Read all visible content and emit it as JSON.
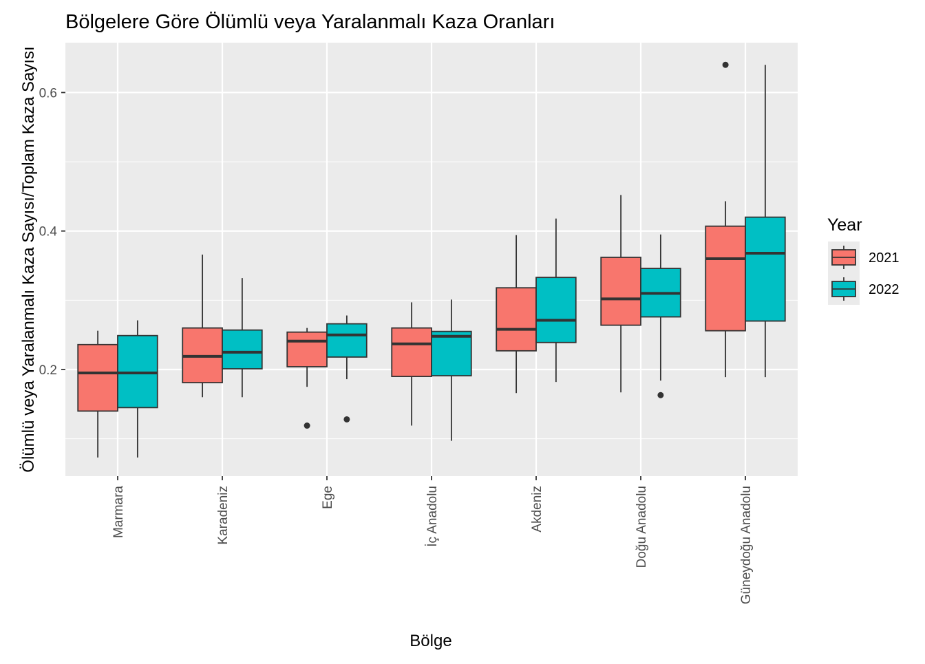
{
  "chart_data": {
    "type": "boxplot",
    "title": "Bölgelere Göre Ölümlü veya Yaralanmalı Kaza Oranları",
    "xlabel": "Bölge",
    "ylabel": "Ölümlü veya Yaralanmalı Kaza Sayısı/Toplam Kaza Sayısı",
    "categories": [
      "Marmara",
      "Karadeniz",
      "Ege",
      "İç Anadolu",
      "Akdeniz",
      "Doğu Anadolu",
      "Güneydoğu Anadolu"
    ],
    "y_ticks": [
      0.2,
      0.4,
      0.6
    ],
    "y_tick_labels": [
      "0.2",
      "0.4",
      "0.6"
    ],
    "ylim": [
      0.046,
      0.672
    ],
    "grid": true,
    "legend": {
      "title": "Year",
      "position": "right"
    },
    "series": [
      {
        "name": "2021",
        "color": "#F8766D",
        "boxes": [
          {
            "min": 0.073,
            "q1": 0.14,
            "median": 0.195,
            "q3": 0.236,
            "max": 0.256,
            "outliers": []
          },
          {
            "min": 0.16,
            "q1": 0.181,
            "median": 0.219,
            "q3": 0.26,
            "max": 0.366,
            "outliers": []
          },
          {
            "min": 0.175,
            "q1": 0.204,
            "median": 0.241,
            "q3": 0.254,
            "max": 0.26,
            "outliers": [
              0.119
            ]
          },
          {
            "min": 0.119,
            "q1": 0.19,
            "median": 0.237,
            "q3": 0.26,
            "max": 0.297,
            "outliers": []
          },
          {
            "min": 0.166,
            "q1": 0.227,
            "median": 0.258,
            "q3": 0.318,
            "max": 0.394,
            "outliers": []
          },
          {
            "min": 0.167,
            "q1": 0.264,
            "median": 0.302,
            "q3": 0.362,
            "max": 0.452,
            "outliers": []
          },
          {
            "min": 0.189,
            "q1": 0.256,
            "median": 0.36,
            "q3": 0.407,
            "max": 0.443,
            "outliers": [
              0.64
            ]
          }
        ]
      },
      {
        "name": "2022",
        "color": "#00BFC4",
        "boxes": [
          {
            "min": 0.073,
            "q1": 0.145,
            "median": 0.195,
            "q3": 0.249,
            "max": 0.271,
            "outliers": []
          },
          {
            "min": 0.16,
            "q1": 0.201,
            "median": 0.225,
            "q3": 0.257,
            "max": 0.332,
            "outliers": []
          },
          {
            "min": 0.186,
            "q1": 0.218,
            "median": 0.25,
            "q3": 0.266,
            "max": 0.278,
            "outliers": [
              0.128
            ]
          },
          {
            "min": 0.097,
            "q1": 0.191,
            "median": 0.248,
            "q3": 0.255,
            "max": 0.301,
            "outliers": []
          },
          {
            "min": 0.182,
            "q1": 0.239,
            "median": 0.271,
            "q3": 0.333,
            "max": 0.418,
            "outliers": []
          },
          {
            "min": 0.184,
            "q1": 0.276,
            "median": 0.31,
            "q3": 0.346,
            "max": 0.395,
            "outliers": [
              0.163
            ]
          },
          {
            "min": 0.189,
            "q1": 0.27,
            "median": 0.368,
            "q3": 0.42,
            "max": 0.64,
            "outliers": []
          }
        ]
      }
    ]
  }
}
